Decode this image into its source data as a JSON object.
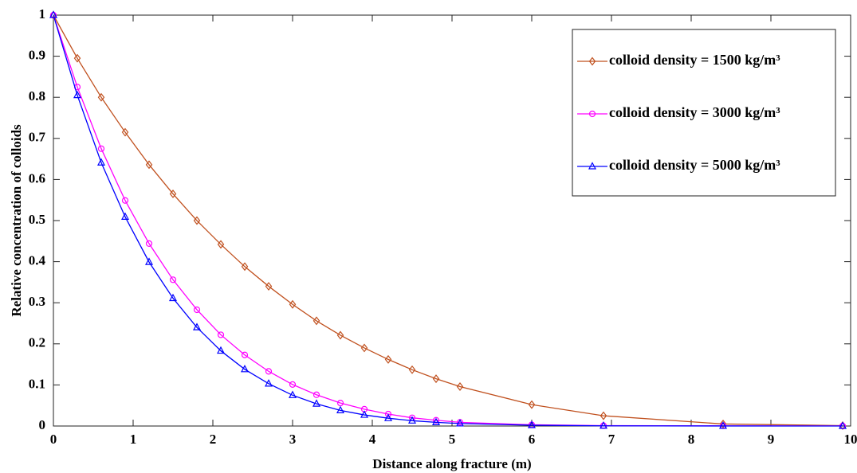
{
  "chart_data": {
    "type": "line",
    "xlabel": "Distance along fracture (m)",
    "ylabel": "Relative concentration of colloids",
    "x": [
      0,
      0.3,
      0.6,
      0.9,
      1.2,
      1.5,
      1.8,
      2.1,
      2.4,
      2.7,
      3.0,
      3.3,
      3.6,
      3.9,
      4.2,
      4.5,
      4.8,
      5.1,
      6.0,
      6.9,
      8.4,
      9.9
    ],
    "series": [
      {
        "name": "colloid density = 1500 kg/m³",
        "color": "#c0501e",
        "marker": "diamond",
        "values": [
          1,
          0.895,
          0.8,
          0.715,
          0.636,
          0.565,
          0.5,
          0.442,
          0.388,
          0.34,
          0.296,
          0.256,
          0.221,
          0.19,
          0.162,
          0.137,
          0.115,
          0.096,
          0.052,
          0.025,
          0.005,
          0.001
        ]
      },
      {
        "name": "colloid density = 3000 kg/m³",
        "color": "#ff00ff",
        "marker": "circle",
        "values": [
          1,
          0.825,
          0.675,
          0.549,
          0.444,
          0.356,
          0.283,
          0.222,
          0.173,
          0.133,
          0.101,
          0.076,
          0.056,
          0.041,
          0.029,
          0.02,
          0.014,
          0.009,
          0.003,
          0.001,
          0.0005,
          0.0002
        ]
      },
      {
        "name": "colloid density = 5000 kg/m³",
        "color": "#0000ff",
        "marker": "triangle",
        "values": [
          1,
          0.805,
          0.641,
          0.509,
          0.399,
          0.311,
          0.24,
          0.183,
          0.138,
          0.103,
          0.075,
          0.054,
          0.038,
          0.027,
          0.019,
          0.013,
          0.009,
          0.006,
          0.002,
          0.0005,
          0.0001,
          0
        ]
      }
    ],
    "xlim": [
      0,
      10
    ],
    "xticks": [
      0,
      1,
      2,
      3,
      4,
      5,
      6,
      7,
      8,
      9,
      10
    ],
    "ylim": [
      0,
      1
    ],
    "yticks": [
      0,
      0.1,
      0.2,
      0.3,
      0.4,
      0.5,
      0.6,
      0.7,
      0.8,
      0.9,
      1
    ],
    "grid": false,
    "legend": "upper right"
  }
}
